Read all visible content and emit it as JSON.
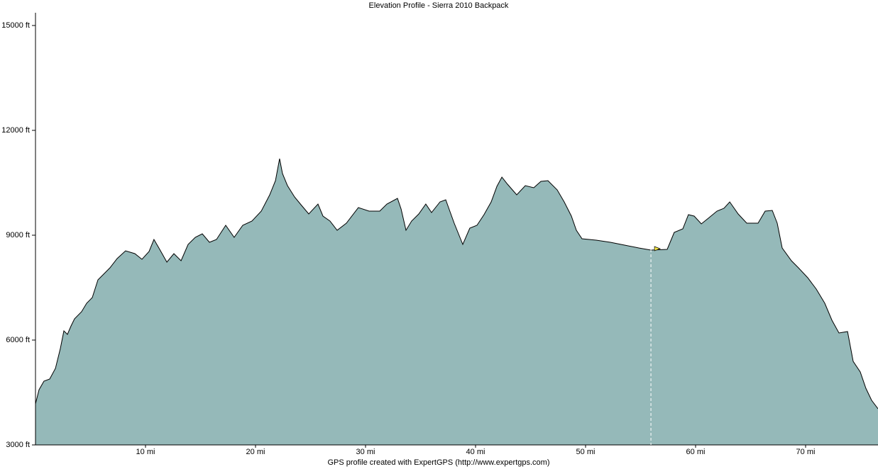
{
  "chart_data": {
    "type": "area",
    "title": "Elevation Profile - Sierra 2010 Backpack",
    "footer": "GPS profile created with ExpertGPS (http://www.expertgps.com)",
    "x": [
      0,
      0.32,
      0.77,
      1.29,
      1.81,
      2.26,
      2.58,
      2.9,
      3.23,
      3.55,
      4.19,
      4.65,
      5.16,
      5.68,
      6.13,
      6.77,
      7.42,
      8.19,
      9.03,
      9.68,
      10.32,
      10.77,
      11.29,
      11.94,
      12.58,
      13.23,
      13.87,
      14.52,
      15.16,
      15.81,
      16.45,
      17.29,
      18.06,
      18.84,
      19.68,
      20.52,
      21.29,
      21.81,
      22.19,
      22.45,
      22.9,
      23.55,
      24.19,
      24.84,
      25.68,
      26.13,
      26.77,
      27.42,
      28.26,
      29.35,
      30.32,
      31.29,
      31.94,
      32.9,
      33.23,
      33.68,
      34.19,
      34.84,
      35.48,
      36,
      36.77,
      37.29,
      38.06,
      38.84,
      39.48,
      40.13,
      40.77,
      41.42,
      41.94,
      42.39,
      42.9,
      43.74,
      44.52,
      45.29,
      45.94,
      46.58,
      47.42,
      48.06,
      48.71,
      49.16,
      49.68,
      50.97,
      52.26,
      53.55,
      54.84,
      55.94,
      57.42,
      58.06,
      58.84,
      59.35,
      59.87,
      60.52,
      61.16,
      61.94,
      62.58,
      63.1,
      63.87,
      64.65,
      65.68,
      66.32,
      66.97,
      67.42,
      67.87,
      68.71,
      69.35,
      70.19,
      70.97,
      71.74,
      72.39,
      73.03,
      73.81,
      74.32,
      74.97,
      75.48,
      76,
      76.58
    ],
    "values": [
      4176,
      4580,
      4824,
      4885,
      5189,
      5757,
      6264,
      6162,
      6405,
      6608,
      6811,
      7054,
      7216,
      7723,
      7865,
      8068,
      8331,
      8554,
      8473,
      8311,
      8534,
      8878,
      8595,
      8230,
      8473,
      8270,
      8737,
      8939,
      9041,
      8797,
      8878,
      9284,
      8939,
      9284,
      9406,
      9689,
      10156,
      10561,
      11189,
      10764,
      10419,
      10095,
      9852,
      9608,
      9892,
      9547,
      9406,
      9142,
      9345,
      9791,
      9689,
      9689,
      9892,
      10054,
      9750,
      9142,
      9406,
      9608,
      9892,
      9649,
      9953,
      10014,
      9345,
      8737,
      9203,
      9284,
      9588,
      9953,
      10399,
      10662,
      10460,
      10156,
      10419,
      10358,
      10541,
      10561,
      10297,
      9953,
      9547,
      9142,
      8899,
      8858,
      8797,
      8716,
      8635,
      8574,
      8595,
      9081,
      9183,
      9588,
      9547,
      9324,
      9486,
      9689,
      9770,
      9953,
      9608,
      9345,
      9345,
      9689,
      9709,
      9345,
      8635,
      8270,
      8068,
      7784,
      7459,
      7054,
      6568,
      6203,
      6243,
      5392,
      5088,
      4622,
      4277,
      4034
    ],
    "color": "#95b9b9",
    "line_color": "#000000",
    "marker_x": 55.94,
    "marker_color": "#f5e642",
    "xlim": [
      0,
      76.58
    ],
    "xticks": [
      {
        "value": 10,
        "label": "10 mi"
      },
      {
        "value": 20,
        "label": "20 mi"
      },
      {
        "value": 30,
        "label": "30 mi"
      },
      {
        "value": 40,
        "label": "40 mi"
      },
      {
        "value": 50,
        "label": "50 mi"
      },
      {
        "value": 60,
        "label": "60 mi"
      },
      {
        "value": 70,
        "label": "70 mi"
      }
    ],
    "ylim": [
      3000,
      15365
    ],
    "yticks": [
      {
        "value": 3000,
        "label": "3000 ft"
      },
      {
        "value": 6000,
        "label": "6000 ft"
      },
      {
        "value": 9000,
        "label": "9000 ft"
      },
      {
        "value": 12000,
        "label": "12000 ft"
      },
      {
        "value": 15000,
        "label": "15000 ft"
      }
    ],
    "grid": false
  }
}
